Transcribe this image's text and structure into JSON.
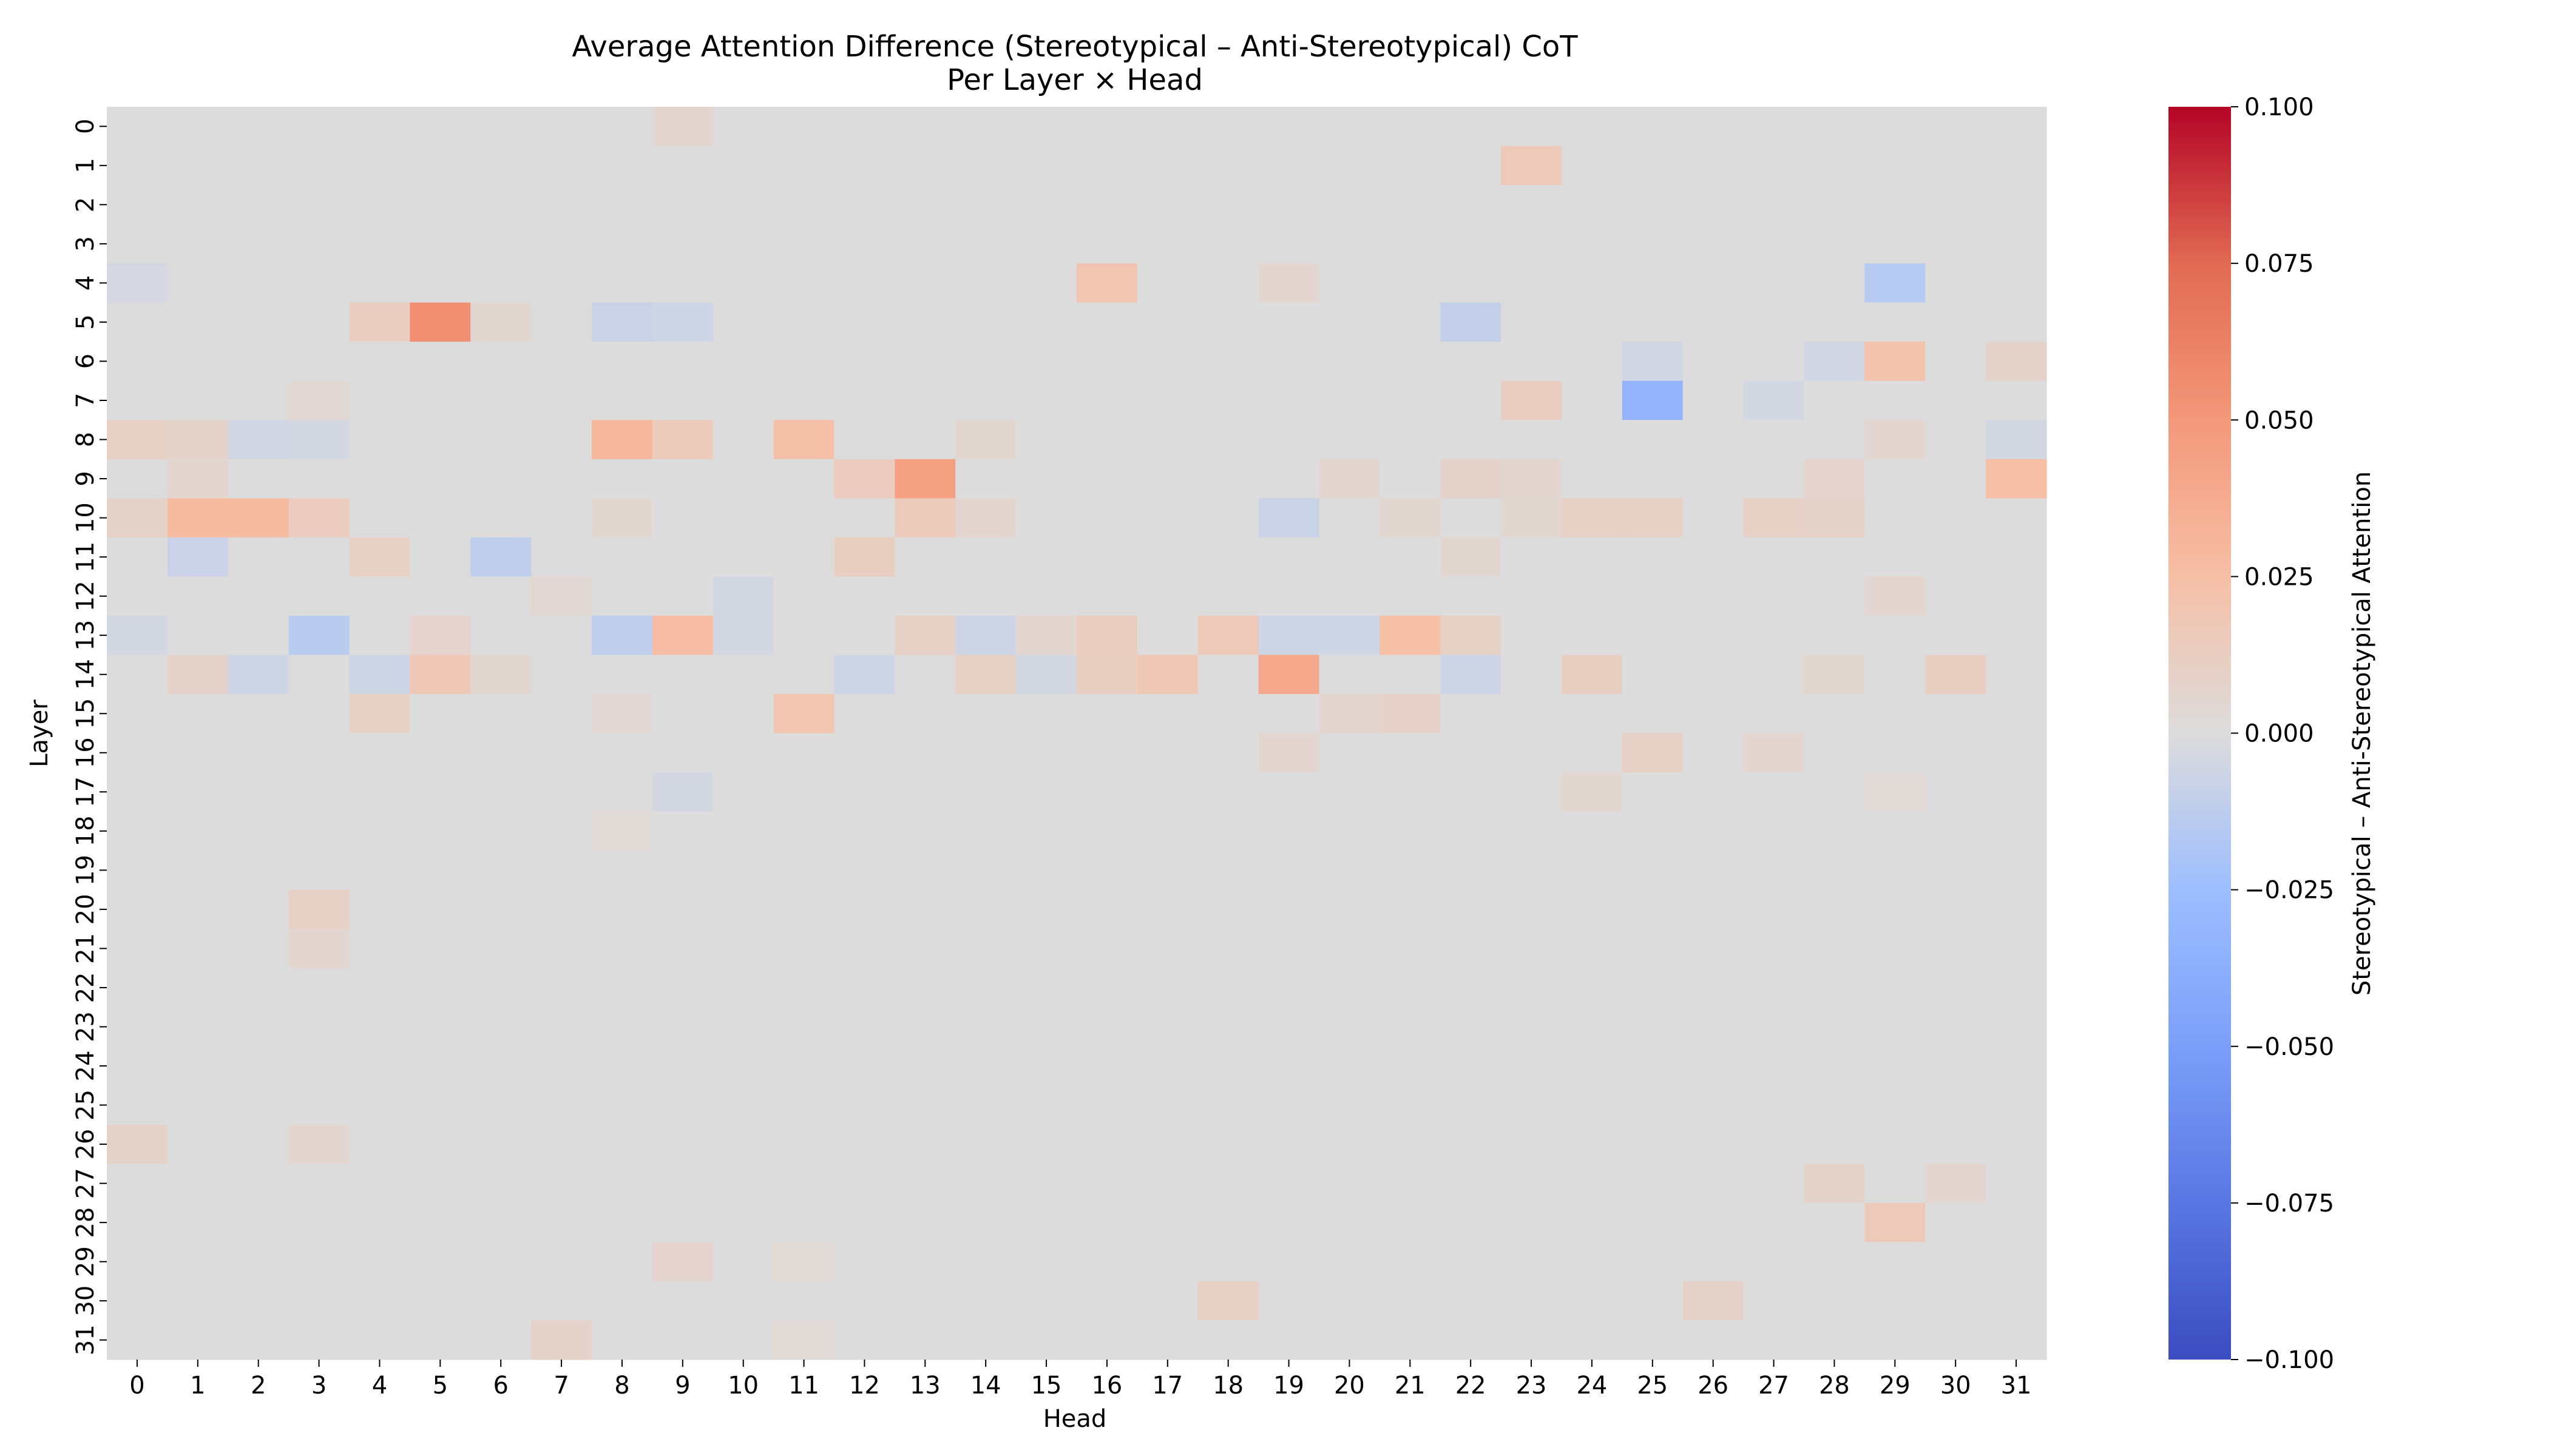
{
  "chart_data": {
    "type": "heatmap",
    "title": "Average Attention Difference (Stereotypical – Anti-Stereotypical) CoT",
    "subtitle": "Per Layer × Head",
    "xlabel": "Head",
    "ylabel": "Layer",
    "x_categories": [
      "0",
      "1",
      "2",
      "3",
      "4",
      "5",
      "6",
      "7",
      "8",
      "9",
      "10",
      "11",
      "12",
      "13",
      "14",
      "15",
      "16",
      "17",
      "18",
      "19",
      "20",
      "21",
      "22",
      "23",
      "24",
      "25",
      "26",
      "27",
      "28",
      "29",
      "30",
      "31"
    ],
    "y_categories": [
      "0",
      "1",
      "2",
      "3",
      "4",
      "5",
      "6",
      "7",
      "8",
      "9",
      "10",
      "11",
      "12",
      "13",
      "14",
      "15",
      "16",
      "17",
      "18",
      "19",
      "20",
      "21",
      "22",
      "23",
      "24",
      "25",
      "26",
      "27",
      "28",
      "29",
      "30",
      "31"
    ],
    "colorbar": {
      "label": "Stereotypical – Anti-Stereotypical Attention",
      "range": [
        -0.1,
        0.1
      ],
      "colormap": "coolwarm",
      "ticks": [
        "0.100",
        "0.075",
        "0.050",
        "0.025",
        "0.000",
        "−0.025",
        "−0.050",
        "−0.075",
        "−0.100"
      ]
    },
    "default_value": 0.0,
    "cells": [
      {
        "layer": 0,
        "head": 9,
        "value": 0.006
      },
      {
        "layer": 1,
        "head": 23,
        "value": 0.016
      },
      {
        "layer": 4,
        "head": 16,
        "value": 0.02
      },
      {
        "layer": 4,
        "head": 19,
        "value": 0.006
      },
      {
        "layer": 4,
        "head": 29,
        "value": -0.015
      },
      {
        "layer": 4,
        "head": 0,
        "value": -0.003
      },
      {
        "layer": 5,
        "head": 4,
        "value": 0.013
      },
      {
        "layer": 5,
        "head": 5,
        "value": 0.055
      },
      {
        "layer": 5,
        "head": 6,
        "value": 0.005
      },
      {
        "layer": 5,
        "head": 8,
        "value": -0.008
      },
      {
        "layer": 5,
        "head": 9,
        "value": -0.006
      },
      {
        "layer": 5,
        "head": 22,
        "value": -0.01
      },
      {
        "layer": 6,
        "head": 25,
        "value": -0.005
      },
      {
        "layer": 6,
        "head": 28,
        "value": -0.005
      },
      {
        "layer": 6,
        "head": 29,
        "value": 0.022
      },
      {
        "layer": 6,
        "head": 31,
        "value": 0.008
      },
      {
        "layer": 7,
        "head": 3,
        "value": 0.004
      },
      {
        "layer": 7,
        "head": 23,
        "value": 0.013
      },
      {
        "layer": 7,
        "head": 25,
        "value": -0.033
      },
      {
        "layer": 7,
        "head": 27,
        "value": -0.004
      },
      {
        "layer": 8,
        "head": 0,
        "value": 0.01
      },
      {
        "layer": 8,
        "head": 1,
        "value": 0.008
      },
      {
        "layer": 8,
        "head": 2,
        "value": -0.005
      },
      {
        "layer": 8,
        "head": 3,
        "value": -0.004
      },
      {
        "layer": 8,
        "head": 8,
        "value": 0.03
      },
      {
        "layer": 8,
        "head": 9,
        "value": 0.015
      },
      {
        "layer": 8,
        "head": 11,
        "value": 0.024
      },
      {
        "layer": 8,
        "head": 14,
        "value": 0.005
      },
      {
        "layer": 8,
        "head": 29,
        "value": 0.006
      },
      {
        "layer": 8,
        "head": 31,
        "value": -0.004
      },
      {
        "layer": 9,
        "head": 1,
        "value": 0.006
      },
      {
        "layer": 9,
        "head": 12,
        "value": 0.014
      },
      {
        "layer": 9,
        "head": 13,
        "value": 0.045
      },
      {
        "layer": 9,
        "head": 20,
        "value": 0.006
      },
      {
        "layer": 9,
        "head": 22,
        "value": 0.008
      },
      {
        "layer": 9,
        "head": 23,
        "value": 0.006
      },
      {
        "layer": 9,
        "head": 28,
        "value": 0.007
      },
      {
        "layer": 9,
        "head": 31,
        "value": 0.025
      },
      {
        "layer": 10,
        "head": 0,
        "value": 0.008
      },
      {
        "layer": 10,
        "head": 1,
        "value": 0.027
      },
      {
        "layer": 10,
        "head": 2,
        "value": 0.027
      },
      {
        "layer": 10,
        "head": 3,
        "value": 0.014
      },
      {
        "layer": 10,
        "head": 8,
        "value": 0.005
      },
      {
        "layer": 10,
        "head": 13,
        "value": 0.015
      },
      {
        "layer": 10,
        "head": 14,
        "value": 0.006
      },
      {
        "layer": 10,
        "head": 19,
        "value": -0.008
      },
      {
        "layer": 10,
        "head": 21,
        "value": 0.005
      },
      {
        "layer": 10,
        "head": 23,
        "value": 0.005
      },
      {
        "layer": 10,
        "head": 24,
        "value": 0.01
      },
      {
        "layer": 10,
        "head": 25,
        "value": 0.01
      },
      {
        "layer": 10,
        "head": 27,
        "value": 0.01
      },
      {
        "layer": 10,
        "head": 28,
        "value": 0.008
      },
      {
        "layer": 11,
        "head": 1,
        "value": -0.008
      },
      {
        "layer": 11,
        "head": 4,
        "value": 0.01
      },
      {
        "layer": 11,
        "head": 6,
        "value": -0.012
      },
      {
        "layer": 11,
        "head": 12,
        "value": 0.012
      },
      {
        "layer": 11,
        "head": 22,
        "value": 0.005
      },
      {
        "layer": 12,
        "head": 7,
        "value": 0.004
      },
      {
        "layer": 12,
        "head": 10,
        "value": -0.004
      },
      {
        "layer": 12,
        "head": 29,
        "value": 0.006
      },
      {
        "layer": 13,
        "head": 0,
        "value": -0.004
      },
      {
        "layer": 13,
        "head": 3,
        "value": -0.014
      },
      {
        "layer": 13,
        "head": 5,
        "value": 0.007
      },
      {
        "layer": 13,
        "head": 8,
        "value": -0.012
      },
      {
        "layer": 13,
        "head": 9,
        "value": 0.026
      },
      {
        "layer": 13,
        "head": 10,
        "value": -0.004
      },
      {
        "layer": 13,
        "head": 13,
        "value": 0.01
      },
      {
        "layer": 13,
        "head": 14,
        "value": -0.006
      },
      {
        "layer": 13,
        "head": 15,
        "value": 0.006
      },
      {
        "layer": 13,
        "head": 16,
        "value": 0.013
      },
      {
        "layer": 13,
        "head": 18,
        "value": 0.016
      },
      {
        "layer": 13,
        "head": 19,
        "value": -0.006
      },
      {
        "layer": 13,
        "head": 20,
        "value": -0.006
      },
      {
        "layer": 13,
        "head": 21,
        "value": 0.025
      },
      {
        "layer": 13,
        "head": 22,
        "value": 0.01
      },
      {
        "layer": 14,
        "head": 1,
        "value": 0.008
      },
      {
        "layer": 14,
        "head": 2,
        "value": -0.006
      },
      {
        "layer": 14,
        "head": 4,
        "value": -0.006
      },
      {
        "layer": 14,
        "head": 5,
        "value": 0.018
      },
      {
        "layer": 14,
        "head": 6,
        "value": 0.005
      },
      {
        "layer": 14,
        "head": 12,
        "value": -0.006
      },
      {
        "layer": 14,
        "head": 14,
        "value": 0.01
      },
      {
        "layer": 14,
        "head": 15,
        "value": -0.004
      },
      {
        "layer": 14,
        "head": 16,
        "value": 0.012
      },
      {
        "layer": 14,
        "head": 17,
        "value": 0.018
      },
      {
        "layer": 14,
        "head": 19,
        "value": 0.04
      },
      {
        "layer": 14,
        "head": 22,
        "value": -0.006
      },
      {
        "layer": 14,
        "head": 24,
        "value": 0.012
      },
      {
        "layer": 14,
        "head": 28,
        "value": 0.005
      },
      {
        "layer": 14,
        "head": 30,
        "value": 0.012
      },
      {
        "layer": 15,
        "head": 4,
        "value": 0.01
      },
      {
        "layer": 15,
        "head": 8,
        "value": 0.004
      },
      {
        "layer": 15,
        "head": 11,
        "value": 0.02
      },
      {
        "layer": 15,
        "head": 20,
        "value": 0.006
      },
      {
        "layer": 15,
        "head": 21,
        "value": 0.009
      },
      {
        "layer": 16,
        "head": 19,
        "value": 0.006
      },
      {
        "layer": 16,
        "head": 25,
        "value": 0.01
      },
      {
        "layer": 16,
        "head": 27,
        "value": 0.006
      },
      {
        "layer": 17,
        "head": 9,
        "value": -0.004
      },
      {
        "layer": 17,
        "head": 24,
        "value": 0.005
      },
      {
        "layer": 17,
        "head": 29,
        "value": 0.003
      },
      {
        "layer": 18,
        "head": 8,
        "value": 0.003
      },
      {
        "layer": 20,
        "head": 3,
        "value": 0.01
      },
      {
        "layer": 21,
        "head": 3,
        "value": 0.006
      },
      {
        "layer": 26,
        "head": 0,
        "value": 0.008
      },
      {
        "layer": 26,
        "head": 3,
        "value": 0.006
      },
      {
        "layer": 27,
        "head": 28,
        "value": 0.008
      },
      {
        "layer": 27,
        "head": 30,
        "value": 0.006
      },
      {
        "layer": 28,
        "head": 29,
        "value": 0.016
      },
      {
        "layer": 29,
        "head": 9,
        "value": 0.007
      },
      {
        "layer": 29,
        "head": 11,
        "value": 0.003
      },
      {
        "layer": 30,
        "head": 18,
        "value": 0.01
      },
      {
        "layer": 30,
        "head": 26,
        "value": 0.008
      },
      {
        "layer": 31,
        "head": 7,
        "value": 0.008
      },
      {
        "layer": 31,
        "head": 11,
        "value": 0.003
      }
    ]
  }
}
